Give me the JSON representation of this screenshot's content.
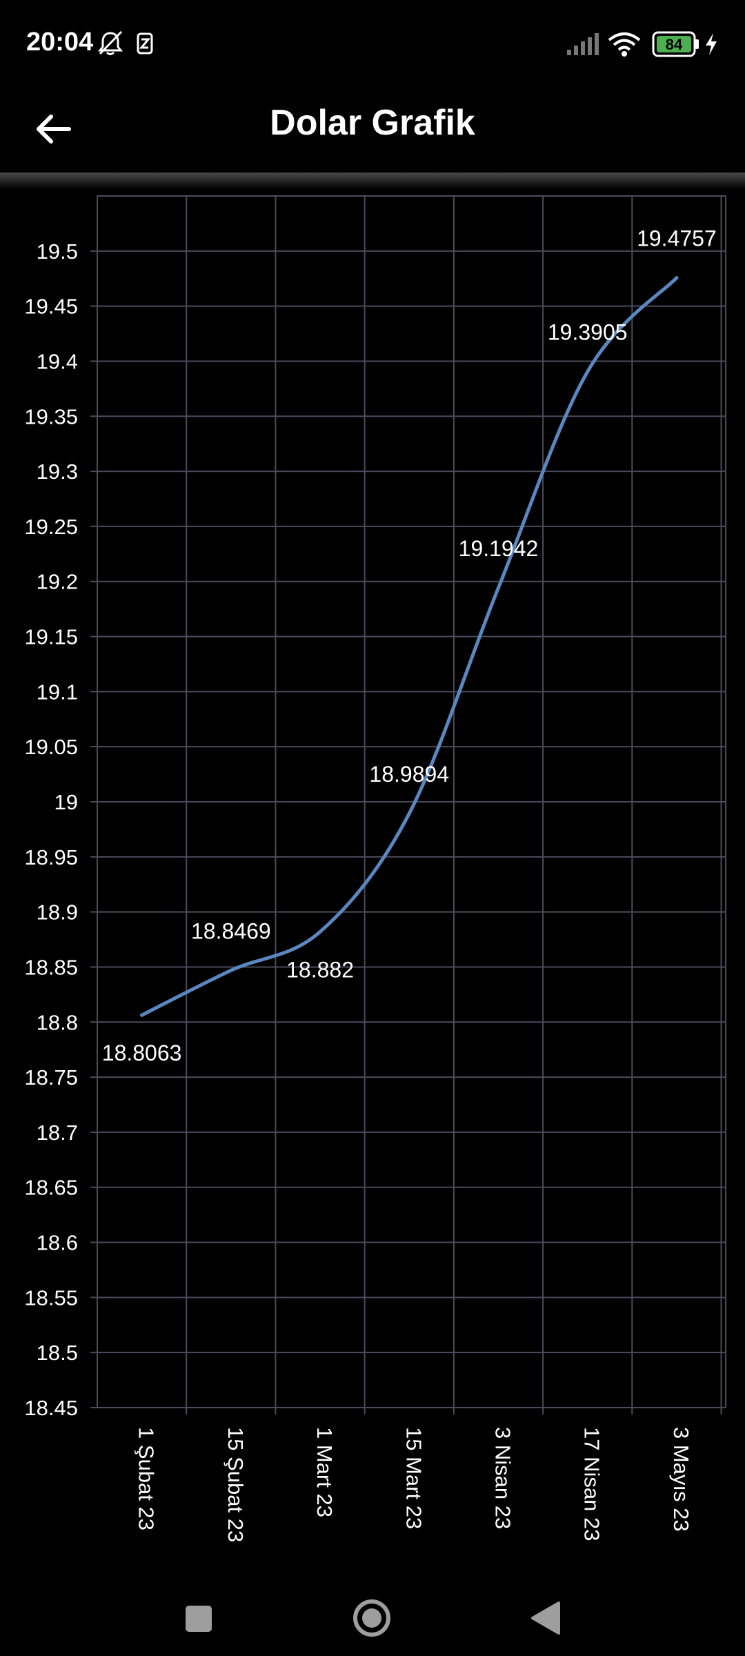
{
  "status_bar": {
    "time": "20:04",
    "icons": [
      "bell-off-icon",
      "notification-icon",
      "signal-icon",
      "wifi-icon",
      "battery-icon",
      "charging-icon"
    ],
    "battery": "84"
  },
  "app_bar": {
    "title": "Dolar Grafik",
    "back_icon": "arrow-left-icon"
  },
  "nav_bar": {
    "icons": [
      "recents-square-icon",
      "home-circle-icon",
      "back-triangle-icon"
    ]
  },
  "colors": {
    "background": "#000000",
    "grid": "#4a4c5c",
    "line": "#5b87c0",
    "text": "#ffffff",
    "battery": "#4caf50"
  },
  "chart_data": {
    "type": "line",
    "categories": [
      "1 Şubat 23",
      "15 Şubat 23",
      "1 Mart 23",
      "15 Mart 23",
      "3 Nisan 23",
      "17 Nisan 23",
      "3 Mayıs 23"
    ],
    "series": [
      {
        "values": [
          18.8063,
          18.8469,
          18.882,
          18.9894,
          19.1942,
          19.3905,
          19.4757
        ]
      }
    ],
    "data_labels": [
      "18.8063",
      "18.8469",
      "18.882",
      "18.9894",
      "19.1942",
      "19.3905",
      "19.4757"
    ],
    "y_ticks": [
      "19.5",
      "19.45",
      "19.4",
      "19.35",
      "19.3",
      "19.25",
      "19.2",
      "19.15",
      "19.1",
      "19.05",
      "19",
      "18.95",
      "18.9",
      "18.85",
      "18.8",
      "18.75",
      "18.7",
      "18.65",
      "18.6",
      "18.55",
      "18.5",
      "18.45"
    ],
    "ylim": [
      18.45,
      19.55
    ],
    "grid": true,
    "smooth": true
  }
}
